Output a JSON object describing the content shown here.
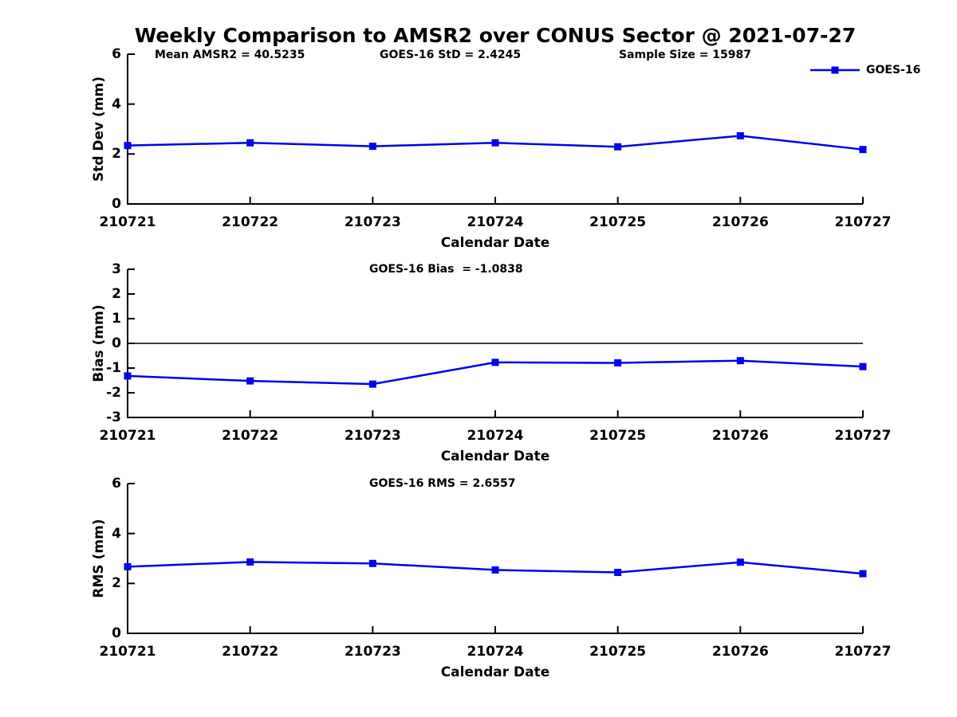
{
  "title": "Weekly Comparison to AMSR2 over CONUS Sector @ 2021-07-27",
  "legend": {
    "label": "GOES-16"
  },
  "colors": {
    "line": "#0000EE",
    "axis": "#000000",
    "zero_line": "#000000",
    "text": "#000000",
    "background": "#FFFFFF"
  },
  "chart_data": [
    {
      "type": "line",
      "id": "std-dev-panel",
      "annotations": [
        "Mean AMSR2 = 40.5235",
        "GOES-16 StD = 2.4245",
        "Sample Size = 15987"
      ],
      "categories": [
        "210721",
        "210722",
        "210723",
        "210724",
        "210725",
        "210726",
        "210727"
      ],
      "series": [
        {
          "name": "GOES-16",
          "values": [
            2.34,
            2.45,
            2.31,
            2.45,
            2.29,
            2.73,
            2.18
          ]
        }
      ],
      "xlabel": "Calendar Date",
      "ylabel": "Std Dev (mm)",
      "ylim": [
        0,
        6
      ],
      "yticks": [
        0,
        2,
        4,
        6
      ],
      "zero_line": false,
      "grid": false,
      "legend_visible": true,
      "legend_position": "top-right"
    },
    {
      "type": "line",
      "id": "bias-panel",
      "annotations": [
        "GOES-16 Bias  = -1.0838"
      ],
      "categories": [
        "210721",
        "210722",
        "210723",
        "210724",
        "210725",
        "210726",
        "210727"
      ],
      "series": [
        {
          "name": "GOES-16",
          "values": [
            -1.32,
            -1.52,
            -1.65,
            -0.77,
            -0.79,
            -0.7,
            -0.94
          ]
        }
      ],
      "xlabel": "Calendar Date",
      "ylabel": "Bias (mm)",
      "ylim": [
        -3,
        3
      ],
      "yticks": [
        -3,
        -2,
        -1,
        0,
        1,
        2,
        3
      ],
      "zero_line": true,
      "grid": false,
      "legend_visible": false
    },
    {
      "type": "line",
      "id": "rms-panel",
      "annotations": [
        "GOES-16 RMS = 2.6557"
      ],
      "categories": [
        "210721",
        "210722",
        "210723",
        "210724",
        "210725",
        "210726",
        "210727"
      ],
      "series": [
        {
          "name": "GOES-16",
          "values": [
            2.67,
            2.86,
            2.8,
            2.54,
            2.44,
            2.85,
            2.39
          ]
        }
      ],
      "xlabel": "Calendar Date",
      "ylabel": "RMS (mm)",
      "ylim": [
        0,
        6
      ],
      "yticks": [
        0,
        2,
        4,
        6
      ],
      "zero_line": false,
      "grid": false,
      "legend_visible": false
    }
  ]
}
